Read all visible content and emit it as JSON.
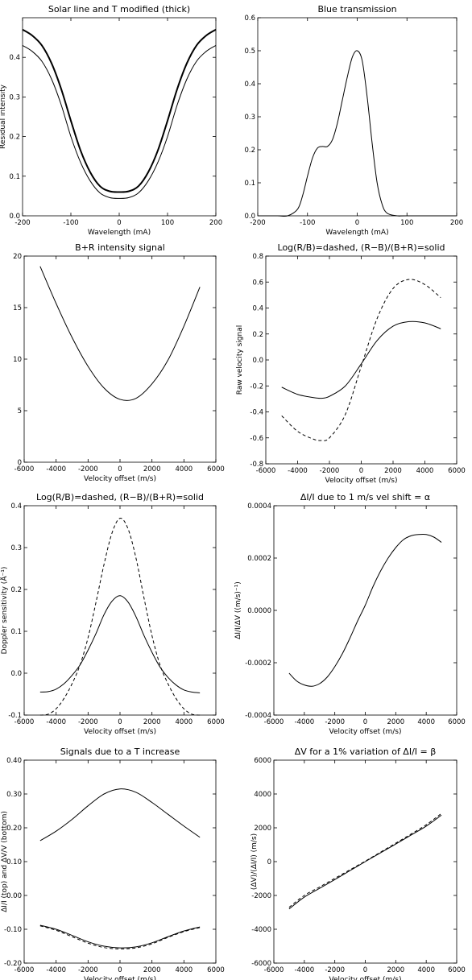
{
  "chart_data": [
    {
      "type": "line",
      "title": "Solar line and T modified (thick)",
      "xlabel": "Wavelength (mA)",
      "ylabel": "Residual intensity",
      "xlim": [
        -200,
        200
      ],
      "ylim": [
        0.0,
        0.5
      ],
      "xticks": [
        -200,
        -100,
        0,
        100,
        200
      ],
      "xtick_labels": [
        "-200",
        "-100",
        "0",
        "100",
        "200"
      ],
      "yticks": [
        0.0,
        0.1,
        0.2,
        0.3,
        0.4
      ],
      "ytick_labels": [
        "0.0",
        "0.1",
        "0.2",
        "0.3",
        "0.4"
      ],
      "series": [
        {
          "name": "",
          "style": "thick",
          "x": [
            -200,
            -180,
            -160,
            -140,
            -120,
            -100,
            -80,
            -60,
            -40,
            -20,
            0,
            20,
            40,
            60,
            80,
            100,
            120,
            140,
            160,
            180,
            200
          ],
          "y": [
            0.47,
            0.455,
            0.43,
            0.385,
            0.32,
            0.24,
            0.165,
            0.11,
            0.075,
            0.062,
            0.06,
            0.062,
            0.075,
            0.11,
            0.165,
            0.24,
            0.32,
            0.385,
            0.43,
            0.455,
            0.47
          ]
        },
        {
          "name": "",
          "style": "solid",
          "x": [
            -200,
            -180,
            -160,
            -140,
            -120,
            -100,
            -80,
            -60,
            -40,
            -20,
            0,
            20,
            40,
            60,
            80,
            100,
            120,
            140,
            160,
            180,
            200
          ],
          "y": [
            0.43,
            0.415,
            0.39,
            0.345,
            0.28,
            0.2,
            0.135,
            0.088,
            0.058,
            0.046,
            0.044,
            0.046,
            0.058,
            0.088,
            0.135,
            0.2,
            0.28,
            0.345,
            0.39,
            0.415,
            0.43
          ]
        }
      ]
    },
    {
      "type": "line",
      "title": "Blue transmission",
      "xlabel": "Wavelength (mA)",
      "ylabel": "",
      "xlim": [
        -200,
        200
      ],
      "ylim": [
        0.0,
        0.6
      ],
      "xticks": [
        -200,
        -100,
        0,
        100,
        200
      ],
      "xtick_labels": [
        "-200",
        "-100",
        "0",
        "100",
        "200"
      ],
      "yticks": [
        0.0,
        0.1,
        0.2,
        0.3,
        0.4,
        0.5,
        0.6
      ],
      "ytick_labels": [
        "0.0",
        "0.1",
        "0.2",
        "0.3",
        "0.4",
        "0.5",
        "0.6"
      ],
      "series": [
        {
          "name": "",
          "style": "solid",
          "x": [
            -200,
            -160,
            -140,
            -120,
            -110,
            -100,
            -90,
            -80,
            -70,
            -60,
            -50,
            -40,
            -30,
            -20,
            -10,
            0,
            10,
            20,
            30,
            40,
            50,
            60,
            80,
            100,
            200
          ],
          "y": [
            0,
            0,
            0,
            0.02,
            0.06,
            0.12,
            0.175,
            0.205,
            0.21,
            0.21,
            0.23,
            0.28,
            0.35,
            0.42,
            0.48,
            0.5,
            0.47,
            0.36,
            0.22,
            0.1,
            0.035,
            0.008,
            0,
            0,
            0
          ]
        }
      ]
    },
    {
      "type": "line",
      "title": "B+R intensity signal",
      "xlabel": "Velocity offset (m/s)",
      "ylabel": "",
      "xlim": [
        -6000,
        6000
      ],
      "ylim": [
        0,
        20
      ],
      "xticks": [
        -6000,
        -4000,
        -2000,
        0,
        2000,
        4000,
        6000
      ],
      "xtick_labels": [
        "-6000",
        "-4000",
        "-2000",
        "0",
        "2000",
        "4000",
        "6000"
      ],
      "yticks": [
        0,
        5,
        10,
        15,
        20
      ],
      "ytick_labels": [
        "0",
        "5",
        "10",
        "15",
        "20"
      ],
      "series": [
        {
          "name": "",
          "style": "solid",
          "x": [
            -5000,
            -4000,
            -3000,
            -2000,
            -1000,
            0,
            1000,
            2000,
            3000,
            4000,
            5000
          ],
          "y": [
            19,
            15.4,
            12.1,
            9.3,
            7.2,
            6.1,
            6.2,
            7.6,
            9.9,
            13.2,
            17
          ]
        }
      ]
    },
    {
      "type": "line",
      "title": "Log(R/B)=dashed, (R−B)/(B+R)=solid",
      "xlabel": "Velocity offset (m/s)",
      "ylabel": "Raw velocity signal",
      "xlim": [
        -6000,
        6000
      ],
      "ylim": [
        -0.8,
        0.8
      ],
      "xticks": [
        -6000,
        -4000,
        -2000,
        0,
        2000,
        4000,
        6000
      ],
      "xtick_labels": [
        "-6000",
        "-4000",
        "-2000",
        "0",
        "2000",
        "4000",
        "6000"
      ],
      "yticks": [
        -0.8,
        -0.6,
        -0.4,
        -0.2,
        0.0,
        0.2,
        0.4,
        0.6,
        0.8
      ],
      "ytick_labels": [
        "-0.8",
        "-0.6",
        "-0.4",
        "-0.2",
        "0.0",
        "0.2",
        "0.4",
        "0.6",
        "0.8"
      ],
      "series": [
        {
          "name": "Log(R/B)",
          "style": "dashed",
          "x": [
            -5000,
            -4000,
            -3000,
            -2500,
            -2000,
            -1000,
            0,
            1000,
            2000,
            3000,
            4000,
            5000
          ],
          "y": [
            -0.43,
            -0.55,
            -0.61,
            -0.62,
            -0.6,
            -0.42,
            -0.05,
            0.32,
            0.55,
            0.62,
            0.58,
            0.48
          ]
        },
        {
          "name": "(R−B)/(B+R)",
          "style": "solid",
          "x": [
            -5000,
            -4000,
            -3000,
            -2500,
            -2000,
            -1000,
            0,
            1000,
            2000,
            3000,
            4000,
            5000
          ],
          "y": [
            -0.21,
            -0.265,
            -0.29,
            -0.295,
            -0.28,
            -0.2,
            -0.03,
            0.15,
            0.26,
            0.295,
            0.285,
            0.24
          ]
        }
      ]
    },
    {
      "type": "line",
      "title": "Log(R/B)=dashed, (R−B)/(B+R)=solid",
      "xlabel": "Velocity offset (m/s)",
      "ylabel": "Doppler sensitivity (Å⁻¹)",
      "xlim": [
        -6000,
        6000
      ],
      "ylim": [
        -0.1,
        0.4
      ],
      "xticks": [
        -6000,
        -4000,
        -2000,
        0,
        2000,
        4000,
        6000
      ],
      "xtick_labels": [
        "-6000",
        "-4000",
        "-2000",
        "0",
        "2000",
        "4000",
        "6000"
      ],
      "yticks": [
        -0.1,
        0.0,
        0.1,
        0.2,
        0.3,
        0.4
      ],
      "ytick_labels": [
        "-0.1",
        "0.0",
        "0.1",
        "0.2",
        "0.3",
        "0.4"
      ],
      "series": [
        {
          "name": "Log(R/B)",
          "style": "dashed",
          "x": [
            -5000,
            -4500,
            -4000,
            -3500,
            -3000,
            -2500,
            -2000,
            -1500,
            -1000,
            -500,
            0,
            500,
            1000,
            1500,
            2000,
            2500,
            3000,
            3500,
            4000,
            4500,
            5000
          ],
          "y": [
            -0.1,
            -0.098,
            -0.085,
            -0.06,
            -0.025,
            0.02,
            0.085,
            0.17,
            0.26,
            0.335,
            0.37,
            0.345,
            0.275,
            0.18,
            0.09,
            0.02,
            -0.025,
            -0.06,
            -0.085,
            -0.098,
            -0.1
          ]
        },
        {
          "name": "(R−B)/(B+R)",
          "style": "solid",
          "x": [
            -5000,
            -4500,
            -4000,
            -3500,
            -3000,
            -2500,
            -2000,
            -1500,
            -1000,
            -500,
            0,
            500,
            1000,
            1500,
            2000,
            2500,
            3000,
            3500,
            4000,
            4500,
            5000
          ],
          "y": [
            -0.045,
            -0.044,
            -0.038,
            -0.025,
            -0.005,
            0.02,
            0.055,
            0.095,
            0.14,
            0.172,
            0.185,
            0.17,
            0.135,
            0.09,
            0.05,
            0.015,
            -0.01,
            -0.028,
            -0.04,
            -0.045,
            -0.047
          ]
        }
      ]
    },
    {
      "type": "line",
      "title": "ΔI/I due to 1 m/s vel shift = α",
      "xlabel": "Velocity offset (m/s)",
      "ylabel": "ΔI/I/ΔV ((m/s)⁻¹)",
      "xlim": [
        -6000,
        6000
      ],
      "ylim": [
        -0.0004,
        0.0004
      ],
      "xticks": [
        -6000,
        -4000,
        -2000,
        0,
        2000,
        4000,
        6000
      ],
      "xtick_labels": [
        "-6000",
        "-4000",
        "-2000",
        "0",
        "2000",
        "4000",
        "6000"
      ],
      "yticks": [
        -0.0004,
        -0.0002,
        0.0,
        0.0002,
        0.0004
      ],
      "ytick_labels": [
        "-0.0004",
        "-0.0002",
        "0.0000",
        "0.0002",
        "0.0004"
      ],
      "series": [
        {
          "name": "",
          "style": "solid",
          "x": [
            -5000,
            -4500,
            -4000,
            -3500,
            -3000,
            -2500,
            -2000,
            -1500,
            -1000,
            -500,
            0,
            500,
            1000,
            1500,
            2000,
            2500,
            3000,
            3500,
            4000,
            4500,
            5000
          ],
          "y": [
            -0.00024,
            -0.00027,
            -0.000285,
            -0.00029,
            -0.00028,
            -0.000255,
            -0.000215,
            -0.000165,
            -0.000105,
            -4e-05,
            2e-05,
            9e-05,
            0.00015,
            0.0002,
            0.00024,
            0.00027,
            0.000285,
            0.00029,
            0.00029,
            0.00028,
            0.00026
          ]
        }
      ]
    },
    {
      "type": "line",
      "title": "Signals due to a T increase",
      "xlabel": "Velocity offset (m/s)",
      "ylabel": "ΔI/I (top) and ΔV/V (bottom)",
      "xlim": [
        -6000,
        6000
      ],
      "ylim": [
        -0.2,
        0.4
      ],
      "xticks": [
        -6000,
        -4000,
        -2000,
        0,
        2000,
        4000,
        6000
      ],
      "xtick_labels": [
        "-6000",
        "-4000",
        "-2000",
        "0",
        "2000",
        "4000",
        "6000"
      ],
      "yticks": [
        -0.2,
        -0.1,
        0.0,
        0.1,
        0.2,
        0.3,
        0.4
      ],
      "ytick_labels": [
        "-0.20",
        "-0.10",
        "0.00",
        "0.10",
        "0.20",
        "0.30",
        "0.40"
      ],
      "series": [
        {
          "name": "",
          "style": "solid",
          "x": [
            -5000,
            -4000,
            -3000,
            -2000,
            -1000,
            0,
            1000,
            2000,
            3000,
            4000,
            5000
          ],
          "y": [
            0.162,
            0.19,
            0.225,
            0.265,
            0.3,
            0.315,
            0.305,
            0.275,
            0.24,
            0.205,
            0.172
          ]
        },
        {
          "name": "",
          "style": "solid",
          "x": [
            -5000,
            -4000,
            -3000,
            -2000,
            -1000,
            0,
            1000,
            2000,
            3000,
            4000,
            5000
          ],
          "y": [
            -0.088,
            -0.1,
            -0.118,
            -0.137,
            -0.15,
            -0.155,
            -0.152,
            -0.14,
            -0.122,
            -0.105,
            -0.093
          ]
        },
        {
          "name": "",
          "style": "dashed",
          "x": [
            -5000,
            -4000,
            -3000,
            -2000,
            -1000,
            0,
            1000,
            2000,
            3000,
            4000,
            5000
          ],
          "y": [
            -0.09,
            -0.103,
            -0.122,
            -0.141,
            -0.154,
            -0.158,
            -0.155,
            -0.143,
            -0.124,
            -0.107,
            -0.095
          ]
        }
      ]
    },
    {
      "type": "line",
      "title": "ΔV for a 1% variation of ΔI/I = β",
      "xlabel": "Velocity offset (m/s)",
      "ylabel": "(ΔV)/(ΔI/I) (m/s)",
      "xlim": [
        -6000,
        6000
      ],
      "ylim": [
        -6000,
        6000
      ],
      "xticks": [
        -6000,
        -4000,
        -2000,
        0,
        2000,
        4000,
        6000
      ],
      "xtick_labels": [
        "-6000",
        "-4000",
        "-2000",
        "0",
        "2000",
        "4000",
        "6000"
      ],
      "yticks": [
        -6000,
        -4000,
        -2000,
        0,
        2000,
        4000,
        6000
      ],
      "ytick_labels": [
        "-6000",
        "-4000",
        "-2000",
        "0",
        "2000",
        "4000",
        "6000"
      ],
      "series": [
        {
          "name": "",
          "style": "solid",
          "x": [
            -5000,
            -4000,
            -3000,
            -2000,
            -1000,
            0,
            1000,
            2000,
            3000,
            4000,
            5000
          ],
          "y": [
            -2800,
            -2100,
            -1580,
            -1060,
            -530,
            0,
            520,
            1040,
            1570,
            2100,
            2750
          ]
        },
        {
          "name": "",
          "style": "dashed",
          "x": [
            -5000,
            -4000,
            -3000,
            -2000,
            -1000,
            0,
            1000,
            2000,
            3000,
            4000,
            5000
          ],
          "y": [
            -2700,
            -2000,
            -1500,
            -990,
            -480,
            30,
            560,
            1090,
            1630,
            2180,
            2850
          ]
        }
      ]
    }
  ]
}
